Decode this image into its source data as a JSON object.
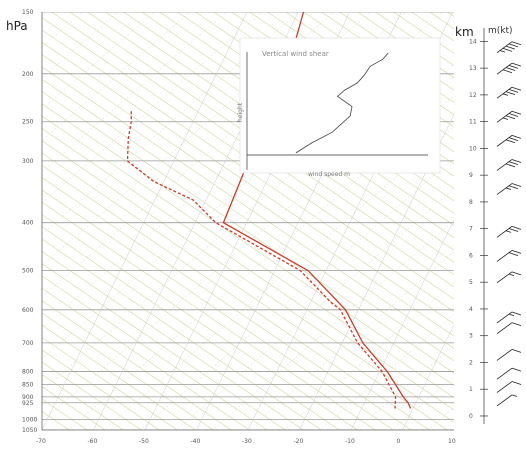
{
  "chart_data": {
    "type": "line",
    "title": "",
    "xlabel": "",
    "ylabel": "hPa",
    "ylabel_right": "km",
    "ylabel_right2": "m(kt)",
    "pressure_ticks": [
      "150",
      "200",
      "250",
      "300",
      "400",
      "500",
      "600",
      "700",
      "800",
      "850",
      "900",
      "925",
      "1000",
      "1050"
    ],
    "height_ticks_km": [
      "0",
      "1",
      "2",
      "3",
      "4",
      "5",
      "6",
      "7",
      "8",
      "9",
      "10",
      "11",
      "12",
      "13",
      "14"
    ],
    "temperature_ticks": [
      "-70",
      "-60",
      "-50",
      "-40",
      "-30",
      "-20",
      "-10",
      "0",
      "10"
    ],
    "xlim": [
      -70,
      10
    ],
    "ylim": [
      1050,
      150
    ],
    "skew": "log-p skew-T",
    "series": [
      {
        "color": "#d03a2a",
        "style": "solid",
        "points": [
          [
            -59.0,
            150
          ],
          [
            -56.5,
            200
          ],
          [
            -51.0,
            250
          ],
          [
            -55.5,
            300
          ],
          [
            -54.5,
            400
          ],
          [
            -33.5,
            500
          ],
          [
            -22.5,
            600
          ],
          [
            -16.0,
            700
          ],
          [
            -8.5,
            800
          ],
          [
            -3.0,
            900
          ],
          [
            -1.5,
            925
          ],
          [
            -0.5,
            950
          ]
        ]
      },
      {
        "color": "#d03a2a",
        "style": "dashed",
        "points": [
          [
            -83.0,
            238
          ],
          [
            -82.0,
            250
          ],
          [
            -81.0,
            270
          ],
          [
            -79.0,
            300
          ],
          [
            -72.0,
            330
          ],
          [
            -62.5,
            360
          ],
          [
            -56.0,
            400
          ],
          [
            -35.0,
            500
          ],
          [
            -26.0,
            580
          ],
          [
            -23.5,
            600
          ],
          [
            -17.0,
            700
          ],
          [
            -9.5,
            800
          ],
          [
            -4.5,
            900
          ],
          [
            -4.0,
            925
          ],
          [
            -3.5,
            950
          ]
        ]
      }
    ],
    "inset": {
      "title": "Vertical wind shear",
      "xlabel": "wind speed m",
      "ylabel": "height",
      "profile": [
        [
          0.27,
          0.02
        ],
        [
          0.36,
          0.12
        ],
        [
          0.47,
          0.22
        ],
        [
          0.57,
          0.38
        ],
        [
          0.58,
          0.47
        ],
        [
          0.5,
          0.57
        ],
        [
          0.54,
          0.63
        ],
        [
          0.61,
          0.7
        ],
        [
          0.65,
          0.78
        ],
        [
          0.68,
          0.86
        ],
        [
          0.75,
          0.93
        ],
        [
          0.78,
          0.99
        ]
      ]
    },
    "wind_barbs_kt": [
      {
        "height_km": 13.8,
        "kt": 45
      },
      {
        "height_km": 13.0,
        "kt": 40
      },
      {
        "height_km": 12.1,
        "kt": 35
      },
      {
        "height_km": 11.2,
        "kt": 35
      },
      {
        "height_km": 10.3,
        "kt": 30
      },
      {
        "height_km": 9.4,
        "kt": 30
      },
      {
        "height_km": 8.5,
        "kt": 25
      },
      {
        "height_km": 6.9,
        "kt": 25
      },
      {
        "height_km": 6.0,
        "kt": 20
      },
      {
        "height_km": 5.2,
        "kt": 15
      },
      {
        "height_km": 3.7,
        "kt": 15
      },
      {
        "height_km": 3.3,
        "kt": 10
      },
      {
        "height_km": 2.3,
        "kt": 10
      },
      {
        "height_km": 1.6,
        "kt": 10
      },
      {
        "height_km": 1.1,
        "kt": 10
      },
      {
        "height_km": 0.6,
        "kt": 5
      }
    ]
  }
}
